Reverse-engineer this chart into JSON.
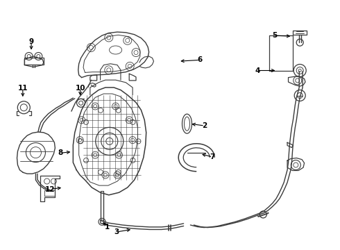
{
  "bg_color": "#ffffff",
  "line_color": "#3a3a3a",
  "figsize": [
    4.9,
    3.6
  ],
  "dpi": 100,
  "label_positions": {
    "1": [
      0.315,
      0.085,
      0.315,
      0.115
    ],
    "2": [
      0.6,
      0.49,
      0.555,
      0.49
    ],
    "3": [
      0.34,
      0.068,
      0.395,
      0.072
    ],
    "4": [
      0.76,
      0.715,
      0.82,
      0.715
    ],
    "5": [
      0.81,
      0.855,
      0.868,
      0.855
    ],
    "6": [
      0.585,
      0.76,
      0.53,
      0.755
    ],
    "7": [
      0.62,
      0.37,
      0.586,
      0.385
    ],
    "8": [
      0.178,
      0.385,
      0.215,
      0.39
    ],
    "9": [
      0.093,
      0.83,
      0.093,
      0.79
    ],
    "10": [
      0.237,
      0.645,
      0.237,
      0.608
    ],
    "11": [
      0.068,
      0.643,
      0.068,
      0.6
    ],
    "12": [
      0.15,
      0.24,
      0.188,
      0.247
    ]
  }
}
